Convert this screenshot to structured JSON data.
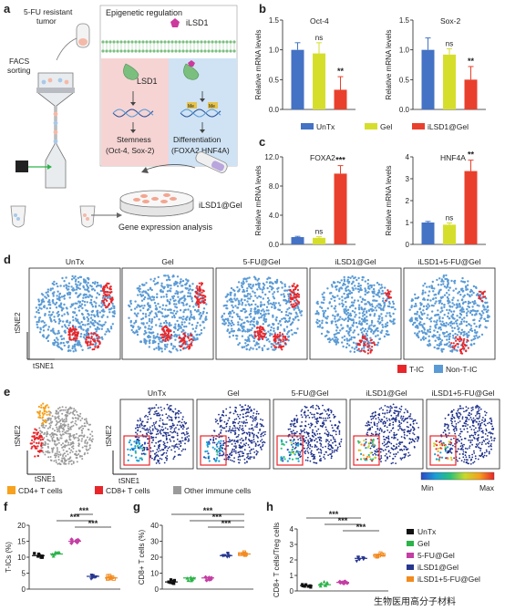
{
  "panels": {
    "a": "a",
    "b": "b",
    "c": "c",
    "d": "d",
    "e": "e",
    "f": "f",
    "g": "g",
    "h": "h"
  },
  "schematic": {
    "tumor_label_1": "5-FU resistant",
    "tumor_label_2": "tumor",
    "facs_label_1": "FACS",
    "facs_label_2": "sorting",
    "epigenetic_title": "Epigenetic regulation",
    "ilsd1_label": "iLSD1",
    "lsd1_label": "LSD1",
    "me_label": "Me",
    "stemness_1": "Stemness",
    "stemness_2": "(Oct-4, Sox-2)",
    "diff_1": "Differentiation",
    "diff_2": "(FOXA2,HNF4A)",
    "gel_label": "iLSD1@Gel",
    "gene_label": "Gene expression analysis",
    "colors": {
      "red_zone": "#f6d4d4",
      "blue_zone": "#cfe3f5",
      "membrane": "#7bbf7f",
      "tumor": "#f4b9a8",
      "drug": "#cc3a9e"
    }
  },
  "bar_legend": [
    "UnTx",
    "Gel",
    "iLSD1@Gel"
  ],
  "bar_colors": [
    "#4472c4",
    "#d6de2c",
    "#e8402d"
  ],
  "chart_data": [
    {
      "type": "bar",
      "panel": "b",
      "title": "Oct-4",
      "ylabel": "Relative mRNA levels",
      "categories": [
        "UnTx",
        "Gel",
        "iLSD1@Gel"
      ],
      "values": [
        1.0,
        0.94,
        0.33
      ],
      "errors": [
        0.12,
        0.18,
        0.22
      ],
      "significance": [
        "",
        "ns",
        "**"
      ],
      "ylim": [
        0,
        1.5
      ],
      "yticks": [
        "0.0",
        "0.5",
        "1.0",
        "1.5"
      ]
    },
    {
      "type": "bar",
      "panel": "b",
      "title": "Sox-2",
      "ylabel": "Relative mRNA levels",
      "categories": [
        "UnTx",
        "Gel",
        "iLSD1@Gel"
      ],
      "values": [
        1.0,
        0.92,
        0.5
      ],
      "errors": [
        0.2,
        0.1,
        0.22
      ],
      "significance": [
        "",
        "ns",
        "**"
      ],
      "ylim": [
        0,
        1.5
      ],
      "yticks": [
        "0.0",
        "0.5",
        "1.0",
        "1.5"
      ]
    },
    {
      "type": "bar",
      "panel": "c",
      "title": "FOXA2",
      "ylabel": "Relative mRNA levels",
      "categories": [
        "UnTx",
        "Gel",
        "iLSD1@Gel"
      ],
      "values": [
        1.0,
        0.9,
        9.7
      ],
      "errors": [
        0.1,
        0.15,
        1.1
      ],
      "significance": [
        "",
        "ns",
        "***"
      ],
      "ylim": [
        0,
        12
      ],
      "yticks": [
        "0.0",
        "4.0",
        "8.0",
        "12.0"
      ]
    },
    {
      "type": "bar",
      "panel": "c",
      "title": "HNF4A",
      "ylabel": "Relative mRNA levels",
      "categories": [
        "UnTx",
        "Gel",
        "iLSD1@Gel"
      ],
      "values": [
        1.0,
        0.9,
        3.35
      ],
      "errors": [
        0.05,
        0.08,
        0.5
      ],
      "significance": [
        "",
        "ns",
        "**"
      ],
      "ylim": [
        0,
        4
      ],
      "yticks": [
        "0",
        "1",
        "2",
        "3",
        "4"
      ]
    },
    {
      "type": "scatter",
      "panel": "f",
      "ylabel": "T-ICs (%)",
      "categories": [
        "UnTx",
        "Gel",
        "5-FU@Gel",
        "iLSD1@Gel",
        "iLSD1+5-FU@Gel"
      ],
      "means": [
        10.5,
        11.0,
        15.0,
        4.0,
        3.5
      ],
      "ylim": [
        0,
        20
      ],
      "yticks": [
        "0",
        "5",
        "10",
        "15",
        "20"
      ],
      "significance": [
        "***",
        "***",
        "***"
      ]
    },
    {
      "type": "scatter",
      "panel": "g",
      "ylabel": "CD8+ T cells (%)",
      "categories": [
        "UnTx",
        "Gel",
        "5-FU@Gel",
        "iLSD1@Gel",
        "iLSD1+5-FU@Gel"
      ],
      "means": [
        4.5,
        7.0,
        7.0,
        21.0,
        22.0
      ],
      "ylim": [
        0,
        40
      ],
      "yticks": [
        "0",
        "10",
        "20",
        "30",
        "40"
      ],
      "significance": [
        "***",
        "***",
        "***"
      ]
    },
    {
      "type": "scatter",
      "panel": "h",
      "ylabel": "CD8+ T cells/Treg cells",
      "categories": [
        "UnTx",
        "Gel",
        "5-FU@Gel",
        "iLSD1@Gel",
        "iLSD1+5-FU@Gel"
      ],
      "means": [
        0.35,
        0.4,
        0.55,
        2.1,
        2.3
      ],
      "ylim": [
        0,
        4
      ],
      "yticks": [
        "0",
        "1",
        "2",
        "3",
        "4"
      ],
      "significance": [
        "***",
        "***",
        "***"
      ]
    }
  ],
  "tsne_d": {
    "groups": [
      "UnTx",
      "Gel",
      "5-FU@Gel",
      "iLSD1@Gel",
      "iLSD1+5-FU@Gel"
    ],
    "xlabel": "tSNE1",
    "ylabel": "tSNE2",
    "legend": [
      "T-IC",
      "Non-T-IC"
    ],
    "colors": {
      "tic": "#e8262a",
      "non": "#5b9bd5"
    }
  },
  "tsne_e": {
    "groups": [
      "UnTx",
      "Gel",
      "5-FU@Gel",
      "iLSD1@Gel",
      "iLSD1+5-FU@Gel"
    ],
    "xlabel": "tSNE1",
    "ylabel": "tSNE2",
    "legend": [
      "CD4+ T cells",
      "CD8+ T cells",
      "Other immune cells"
    ],
    "legend_colors": [
      "#f6a21e",
      "#e8262a",
      "#9a9a9a"
    ],
    "scale_min": "Min",
    "scale_max": "Max"
  },
  "scatter_legend": [
    "UnTx",
    "Gel",
    "5-FU@Gel",
    "iLSD1@Gel",
    "iLSD1+5-FU@Gel"
  ],
  "scatter_colors": [
    "#111111",
    "#2db34a",
    "#c43ea3",
    "#27378f",
    "#f28a1e"
  ],
  "watermark": "生物医用高分子材料"
}
